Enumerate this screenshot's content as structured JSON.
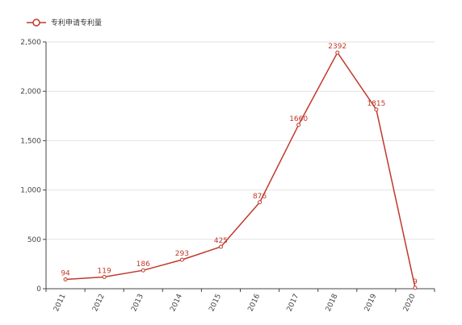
{
  "colors": {
    "series": "#c0392b",
    "grid": "#e2e2e2",
    "axis": "#444444",
    "background": "#ffffff"
  },
  "chart_data": {
    "type": "line",
    "title": "",
    "xlabel": "",
    "ylabel": "",
    "legend": {
      "placement": "top-left",
      "entries": [
        "专利申请专利量"
      ]
    },
    "grid": {
      "y": true,
      "x": false
    },
    "x": [
      "2011",
      "2012",
      "2013",
      "2014",
      "2015",
      "2016",
      "2017",
      "2018",
      "2019",
      "2020"
    ],
    "ylim": [
      0,
      2500
    ],
    "yticks": [
      0,
      500,
      1000,
      1500,
      2000,
      2500
    ],
    "ytick_labels": [
      "0",
      "500",
      "1,000",
      "1,500",
      "2,000",
      "2,500"
    ],
    "series": [
      {
        "name": "专利申请专利量",
        "values": [
          94,
          119,
          186,
          293,
          425,
          876,
          1660,
          2392,
          1815,
          9
        ],
        "labels": [
          "94",
          "119",
          "186",
          "293",
          "425",
          "876",
          "1660",
          "2392",
          "1815",
          "9"
        ]
      }
    ]
  }
}
